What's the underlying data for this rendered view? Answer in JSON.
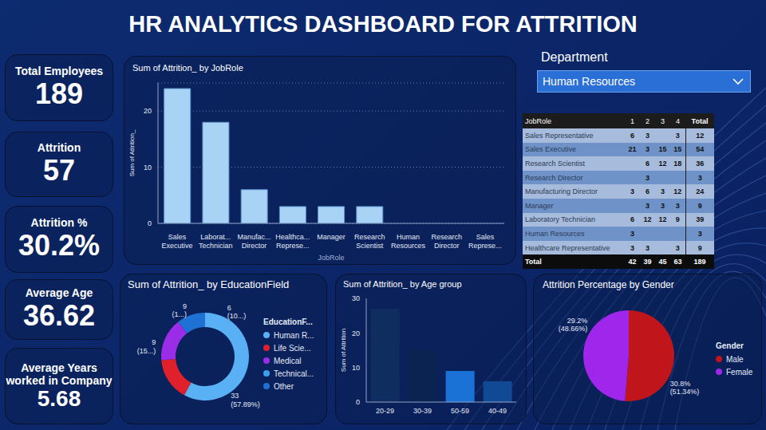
{
  "title": "HR ANALYTICS DASHBOARD FOR ATTRITION",
  "cards": [
    {
      "label": "Total Employees",
      "value": 189
    },
    {
      "label": "Attrition",
      "value": 57
    },
    {
      "label": "Attrition %",
      "value": "30.2%"
    },
    {
      "label": "Average Age",
      "value": 36.62
    },
    {
      "label": "Average Years worked in Company",
      "value": 5.68
    }
  ],
  "filter": {
    "label": "Department",
    "value": "Human Resources"
  },
  "table": {
    "header": [
      "JobRole",
      "1",
      "2",
      "3",
      "4",
      "Total"
    ],
    "rows": [
      [
        "Sales Representative",
        6,
        3,
        null,
        3,
        12
      ],
      [
        "Sales Executive",
        21,
        3,
        15,
        15,
        54
      ],
      [
        "Research Scientist",
        null,
        6,
        12,
        18,
        36
      ],
      [
        "Research Director",
        null,
        3,
        null,
        null,
        3
      ],
      [
        "Manufacturing Director",
        3,
        6,
        3,
        12,
        24
      ],
      [
        "Manager",
        null,
        3,
        3,
        3,
        9
      ],
      [
        "Laboratory Technician",
        6,
        12,
        12,
        9,
        39
      ],
      [
        "Human Resources",
        3,
        null,
        null,
        null,
        3
      ],
      [
        "Healthcare Representative",
        3,
        3,
        null,
        3,
        9
      ]
    ],
    "total": [
      "Total",
      42,
      39,
      45,
      63,
      189
    ]
  },
  "chart_data": [
    {
      "type": "bar",
      "title": "Sum of Attrition_ by JobRole",
      "x_label": "JobRole",
      "y_label": "Sum of Attrition_",
      "categories": [
        "Sales Executive",
        "Laborat... Technician",
        "Manufac... Director",
        "Healthca... Represe...",
        "Manager",
        "Research Scientist",
        "Human Resources",
        "Research Director",
        "Sales Represe..."
      ],
      "values": [
        24,
        18,
        6,
        3,
        3,
        3,
        0,
        0,
        0
      ],
      "color": "#a9d3f5",
      "ylim": [
        0,
        25
      ],
      "yticks": [
        0,
        10,
        20
      ],
      "grid": true
    },
    {
      "type": "donut",
      "title": "Sum of Attrition_ by EducationField",
      "legend_title": "EducationF...",
      "categories": [
        "Human R...",
        "Life Scie...",
        "Medical",
        "Technical...",
        "Other"
      ],
      "values": [
        33,
        9,
        9,
        0,
        6
      ],
      "value_labels": [
        "33 (57.89%)",
        "9 (15...)",
        "9 (1...)",
        null,
        "6 (10...)"
      ],
      "colors": [
        "#5ab0f4",
        "#e0202a",
        "#9b2de8",
        "#3f9ff0",
        "#1f72d4"
      ],
      "legend": "right"
    },
    {
      "type": "bar",
      "title": "Sum of Attrition_ by Age group",
      "y_label": "Sum of Attrition",
      "categories": [
        "20-29",
        "30-39",
        "50-59",
        "40-49"
      ],
      "values": [
        27,
        15,
        9,
        6
      ],
      "colors": [
        "#0f2d5e",
        "#0a2350",
        "#1a72d6",
        "#114a94"
      ],
      "ylim": [
        0,
        30
      ],
      "yticks": [
        0,
        10,
        20,
        30
      ],
      "grid": false
    },
    {
      "type": "pie",
      "title": "Attrition Percentage by Gender",
      "legend_title": "Gender",
      "categories": [
        "Male",
        "Female"
      ],
      "values": [
        30.8,
        29.2
      ],
      "value_labels": [
        "30.8% (51.34%)",
        "29.2% (48.66%)"
      ],
      "colors": [
        "#c0161b",
        "#a126ec"
      ],
      "legend": "right"
    }
  ]
}
